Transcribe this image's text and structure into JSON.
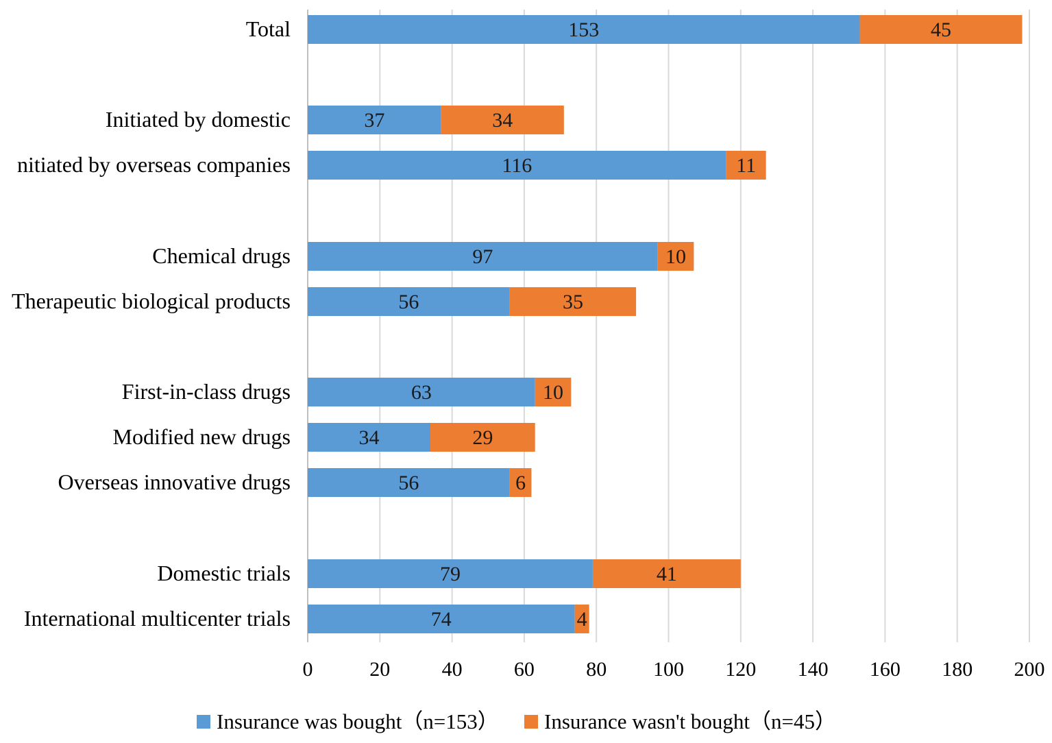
{
  "colors": {
    "bought": "#5b9bd5",
    "not_bought": "#ed7d31",
    "grid": "#d9d9d9",
    "text": "#000000"
  },
  "chart_data": {
    "type": "bar",
    "orientation": "horizontal",
    "stacked": true,
    "title": "",
    "xlabel": "",
    "ylabel": "",
    "xlim": [
      0,
      200
    ],
    "x_ticks": [
      0,
      20,
      40,
      60,
      80,
      100,
      120,
      140,
      160,
      180,
      200
    ],
    "grid": true,
    "legend_position": "bottom",
    "categories": [
      "Total",
      "Initiated by domestic",
      "nitiated by overseas companies",
      "Chemical drugs",
      "Therapeutic biological products",
      "First-in-class drugs",
      "Modified new drugs",
      "Overseas innovative drugs",
      "Domestic trials",
      "International multicenter trials"
    ],
    "series": [
      {
        "name": "Insurance was bought（n=153）",
        "color_key": "bought",
        "values": [
          153,
          37,
          116,
          97,
          56,
          63,
          34,
          56,
          79,
          74
        ]
      },
      {
        "name": "Insurance wasn't bought（n=45）",
        "color_key": "not_bought",
        "values": [
          45,
          34,
          11,
          10,
          35,
          10,
          29,
          6,
          41,
          4
        ]
      }
    ]
  }
}
